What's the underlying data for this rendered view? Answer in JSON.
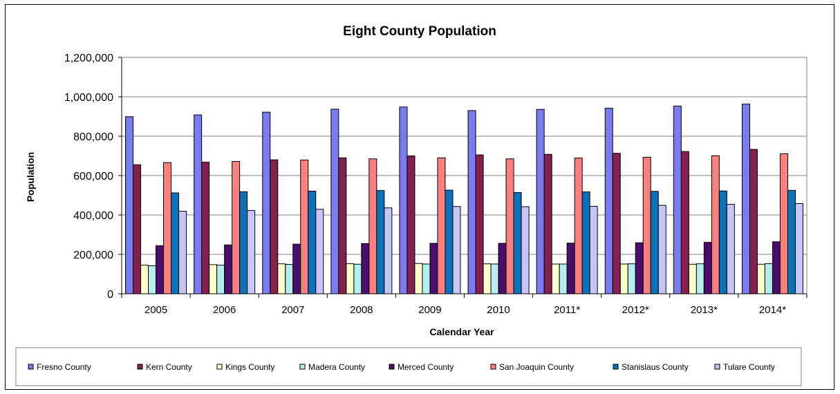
{
  "chart_data": {
    "type": "bar",
    "title": "Eight County Population",
    "xlabel": "Calendar Year",
    "ylabel": "Population",
    "ylim": [
      0,
      1200000
    ],
    "yticks": [
      "0",
      "200,000",
      "400,000",
      "600,000",
      "800,000",
      "1,000,000",
      "1,200,000"
    ],
    "ytick_values": [
      0,
      200000,
      400000,
      600000,
      800000,
      1000000,
      1200000
    ],
    "grid": true,
    "legend_position": "bottom",
    "categories": [
      "2005",
      "2006",
      "2007",
      "2008",
      "2009",
      "2010",
      "2011*",
      "2012*",
      "2013*",
      "2014*"
    ],
    "series": [
      {
        "name": "Fresno County",
        "color": "#7b7bef",
        "values": [
          899000,
          908000,
          922000,
          937000,
          948000,
          930000,
          936000,
          942000,
          953000,
          963000
        ]
      },
      {
        "name": "Kern County",
        "color": "#84204f",
        "values": [
          655000,
          668000,
          680000,
          690000,
          700000,
          705000,
          708000,
          713000,
          722000,
          733000
        ]
      },
      {
        "name": "Kings County",
        "color": "#ffffcc",
        "values": [
          145000,
          148000,
          152000,
          153000,
          154000,
          152000,
          151000,
          151000,
          150000,
          150000
        ]
      },
      {
        "name": "Madera County",
        "color": "#b5eeee",
        "values": [
          142000,
          145000,
          149000,
          150000,
          151000,
          151000,
          151000,
          152000,
          152000,
          153000
        ]
      },
      {
        "name": "Merced County",
        "color": "#4b0d6b",
        "values": [
          244000,
          248000,
          252000,
          255000,
          256000,
          256000,
          257000,
          259000,
          261000,
          264000
        ]
      },
      {
        "name": "San Joaquin County",
        "color": "#fa7f7f",
        "values": [
          666000,
          672000,
          679000,
          685000,
          690000,
          685000,
          689000,
          693000,
          701000,
          711000
        ]
      },
      {
        "name": "Stanislaus County",
        "color": "#0b71b8",
        "values": [
          512000,
          518000,
          521000,
          524000,
          526000,
          514000,
          517000,
          520000,
          522000,
          525000
        ]
      },
      {
        "name": "Tulare County",
        "color": "#c6c6f6",
        "values": [
          419000,
          423000,
          429000,
          436000,
          443000,
          442000,
          444000,
          449000,
          454000,
          458000
        ]
      }
    ]
  }
}
